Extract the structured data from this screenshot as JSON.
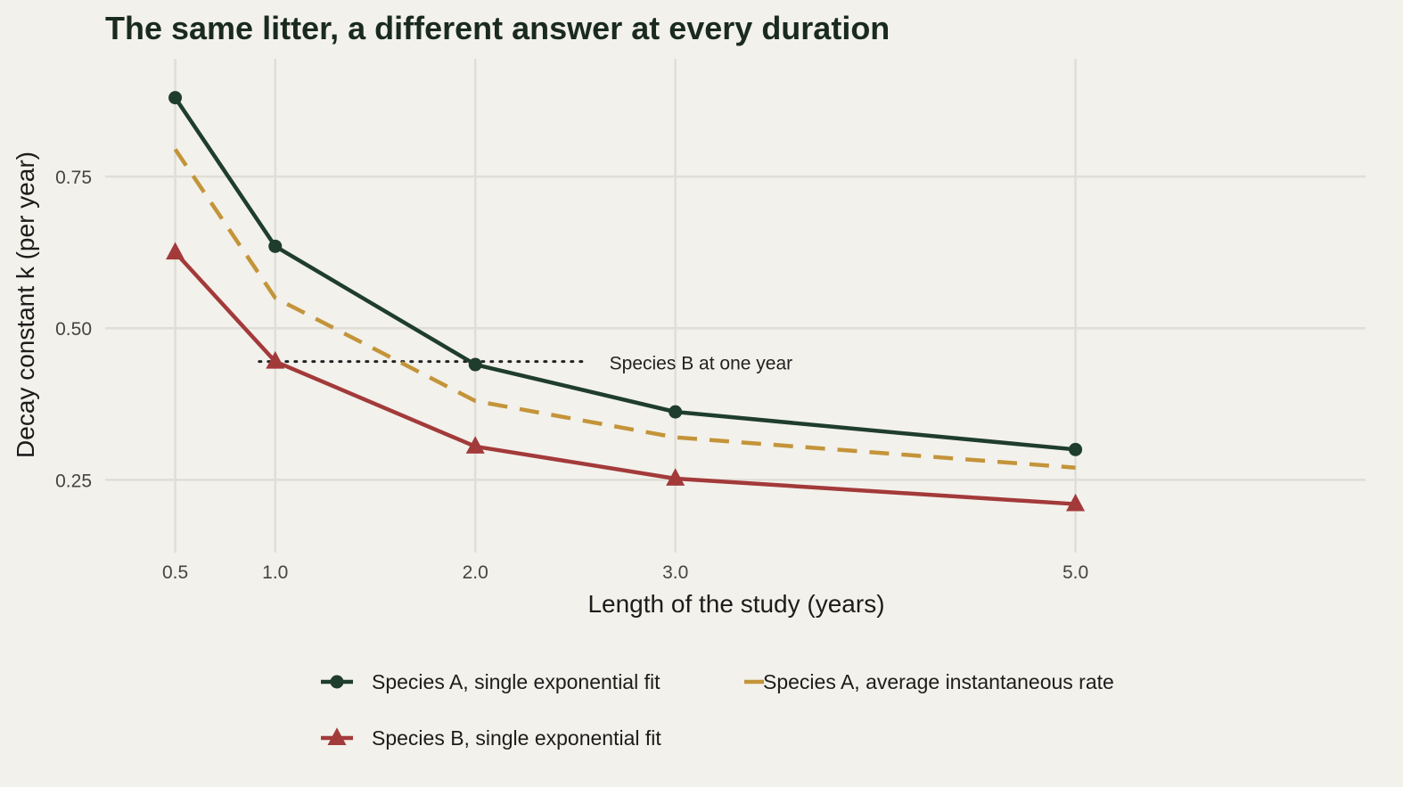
{
  "chart_data": {
    "type": "line",
    "title": "The same litter, a different answer at every duration",
    "xlabel": "Length of the study (years)",
    "ylabel": "Decay constant k (per year)",
    "x": [
      0.5,
      1.0,
      2.0,
      3.0,
      5.0
    ],
    "x_tick_labels": [
      "0.5",
      "1.0",
      "2.0",
      "3.0",
      "5.0"
    ],
    "y_ticks": [
      0.25,
      0.5,
      0.75
    ],
    "y_tick_labels": [
      "0.25",
      "0.50",
      "0.75"
    ],
    "xlim": [
      0.15,
      6.45
    ],
    "ylim": [
      0.13,
      0.95
    ],
    "grid": true,
    "legend_position": "bottom",
    "series": [
      {
        "name": "Species A, single exponential fit",
        "values": [
          0.88,
          0.635,
          0.44,
          0.362,
          0.3
        ],
        "color": "#1f3d2c",
        "line_style": "solid",
        "marker": "circle"
      },
      {
        "name": "Species A, average instantaneous rate",
        "values": [
          0.795,
          0.55,
          0.38,
          0.32,
          0.27
        ],
        "color": "#c4943a",
        "line_style": "dashed",
        "marker": "none"
      },
      {
        "name": "Species B, single exponential fit",
        "values": [
          0.625,
          0.445,
          0.305,
          0.252,
          0.21
        ],
        "color": "#a33a3a",
        "line_style": "solid",
        "marker": "triangle"
      }
    ],
    "reference_line": {
      "y": 0.445,
      "x_range": [
        0.92,
        2.55
      ],
      "style": "dotted",
      "color": "#222222",
      "label": "Species B at one year"
    }
  }
}
